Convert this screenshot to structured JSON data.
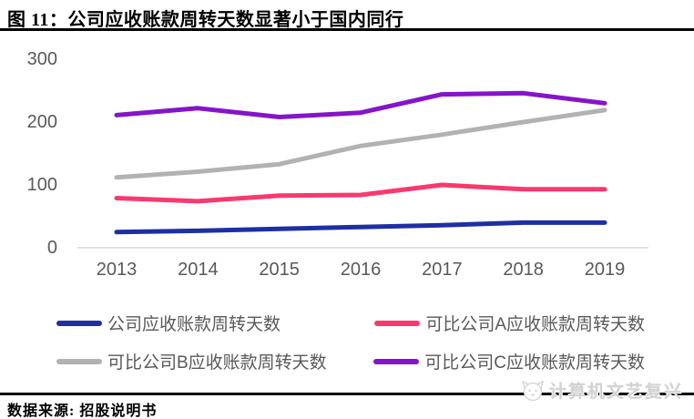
{
  "figure": {
    "title": "图 11：公司应收账款周转天数显著小于国内同行",
    "source_label": "数据来源: 招股说明书",
    "watermark": "计算机文艺复兴"
  },
  "chart_data": {
    "type": "line",
    "categories": [
      "2013",
      "2014",
      "2015",
      "2016",
      "2017",
      "2018",
      "2019"
    ],
    "series": [
      {
        "name": "公司应收账款周转天数",
        "color": "#1E2FA3",
        "values": [
          25,
          27,
          30,
          33,
          36,
          40,
          40
        ]
      },
      {
        "name": "可比公司A应收账款周转天数",
        "color": "#F9396F",
        "values": [
          79,
          74,
          83,
          84,
          100,
          93,
          93
        ]
      },
      {
        "name": "可比公司B应收账款周转天数",
        "color": "#B2B2B2",
        "values": [
          112,
          121,
          133,
          162,
          180,
          200,
          219
        ]
      },
      {
        "name": "可比公司C应收账款周转天数",
        "color": "#8415C8",
        "values": [
          211,
          222,
          208,
          215,
          244,
          246,
          230
        ]
      }
    ],
    "title": "公司应收账款周转天数显著小于国内同行",
    "xlabel": "",
    "ylabel": "",
    "ylim": [
      0,
      300
    ],
    "yticks": [
      0,
      100,
      200,
      300
    ],
    "grid": false,
    "legend_position": "bottom",
    "legend_rows": [
      [
        0,
        1
      ],
      [
        2,
        3
      ]
    ]
  },
  "colors": {
    "axis_text": "#595959",
    "axis_line": "#D9D9D9",
    "rule": "#000000",
    "watermark_text": "#D2D2D2"
  }
}
